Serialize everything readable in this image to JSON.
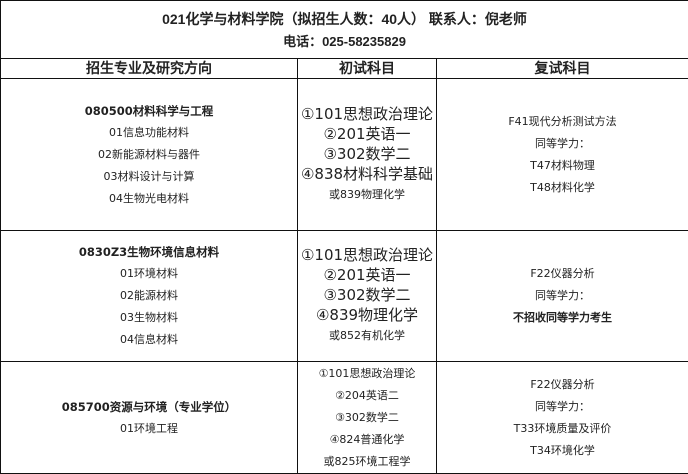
{
  "header": {
    "title": "021化学与材料学院（拟招生人数：40人） 联系人：倪老师",
    "phone": "电话：025-58235829"
  },
  "columns": [
    "招生专业及研究方向",
    "初试科目",
    "复试科目"
  ],
  "rows": [
    {
      "major": "080500材料科学与工程",
      "directions": [
        "01信息功能材料",
        "02新能源材料与器件",
        "03材料设计与计算",
        "04生物光电材料"
      ],
      "initial": [
        "①101思想政治理论",
        "②201英语一",
        "③302数学二",
        "④838材料科学基础"
      ],
      "initial_alt": "或839物理化学",
      "retest": [
        "F41现代分析测试方法",
        "同等学力：",
        "T47材料物理",
        "T48材料化学"
      ]
    },
    {
      "major": "0830Z3生物环境信息材料",
      "directions": [
        "01环境材料",
        "02能源材料",
        "03生物材料",
        "04信息材料"
      ],
      "initial": [
        "①101思想政治理论",
        "②201英语一",
        "③302数学二",
        "④839物理化学"
      ],
      "initial_alt": "或852有机化学",
      "retest": [
        "F22仪器分析",
        "同等学力：",
        "不招收同等学力考生"
      ]
    },
    {
      "major": "085700资源与环境（专业学位）",
      "directions": [
        "01环境工程"
      ],
      "initial": [
        "①101思想政治理论",
        "②204英语二",
        "③302数学二",
        "④824普通化学"
      ],
      "initial_alt": "或825环境工程学",
      "retest": [
        "F22仪器分析",
        "同等学力：",
        "T33环境质量及评价",
        "T34环境化学"
      ]
    }
  ]
}
